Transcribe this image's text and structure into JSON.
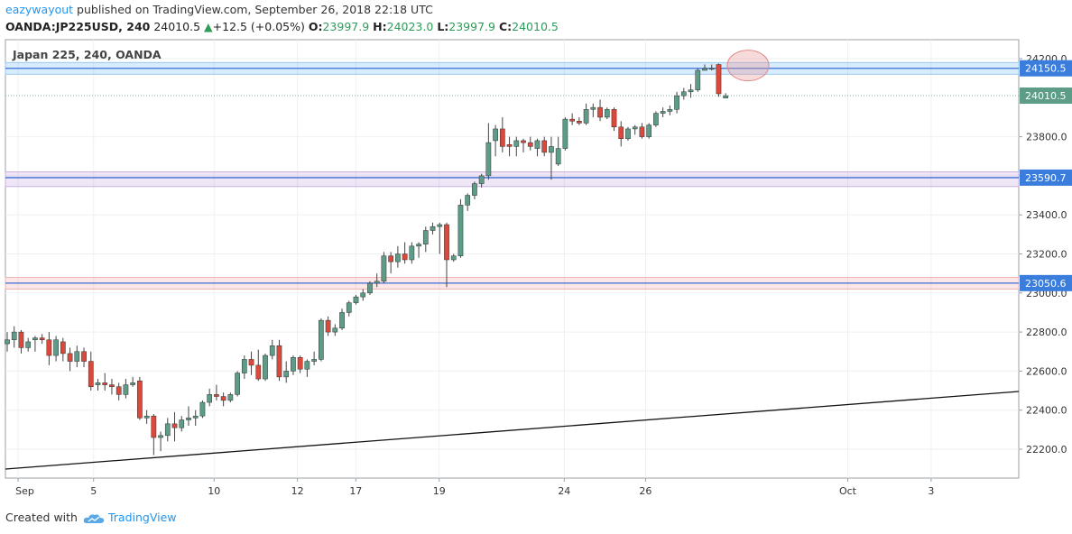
{
  "header": {
    "user": "eazywayout",
    "published_text": "published on TradingView.com, September 26, 2018 22:18 UTC",
    "symbol_line": "OANDA:JP225USD, 240",
    "last": "24010.5",
    "change": "+12.5 (+0.05%)",
    "o_label": "O:",
    "o_val": "23997.9",
    "h_label": "H:",
    "h_val": "24023.0",
    "l_label": "L:",
    "l_val": "23997.9",
    "c_label": "C:",
    "c_val": "24010.5"
  },
  "footer": {
    "created_with": "Created with",
    "brand": "TradingView"
  },
  "colors": {
    "up": "#5d9c87",
    "down": "#d9493c",
    "accent": "#2196f3",
    "band_blue": "#cfe3f7",
    "band_purple": "#e8ddf0",
    "band_red": "#f7dcdc"
  },
  "chart_data": {
    "type": "candlestick",
    "title": "Japan 225, 240, OANDA",
    "ylim": [
      22050,
      24250
    ],
    "y_ticks": [
      {
        "value": 24200,
        "label": "24200.0"
      },
      {
        "value": 23800,
        "label": "23800.0"
      },
      {
        "value": 23600,
        "label": "23600.0"
      },
      {
        "value": 23400,
        "label": "23400.0"
      },
      {
        "value": 23200,
        "label": "23200.0"
      },
      {
        "value": 23000,
        "label": "23000.0"
      },
      {
        "value": 22800,
        "label": "22800.0"
      },
      {
        "value": 22600,
        "label": "22600.0"
      },
      {
        "value": 22400,
        "label": "22400.0"
      },
      {
        "value": 22200,
        "label": "22200.0"
      }
    ],
    "x_ticks": [
      "Sep",
      "5",
      "10",
      "12",
      "17",
      "19",
      "24",
      "26",
      "Oct",
      "3"
    ],
    "price_lines": [
      {
        "value": 24150.5,
        "label": "24150.5",
        "band": [
          24120,
          24180
        ],
        "band_color": "blue"
      },
      {
        "value": 24010.5,
        "label": "24010.5",
        "current": true
      },
      {
        "value": 23590.7,
        "label": "23590.7",
        "band": [
          23545,
          23620
        ],
        "band_color": "purple"
      },
      {
        "value": 23050.6,
        "label": "23050.6",
        "band": [
          23020,
          23080
        ],
        "band_color": "red"
      }
    ],
    "trendline": [
      {
        "date": "Sep 1",
        "value": 22100
      },
      {
        "date": "Oct 5",
        "value": 22500
      }
    ],
    "highlight": {
      "date": "Sep 26",
      "value": 24165
    },
    "candles": [
      [
        22740,
        22800,
        22700,
        22760
      ],
      [
        22760,
        22830,
        22720,
        22800
      ],
      [
        22800,
        22810,
        22690,
        22720
      ],
      [
        22720,
        22770,
        22700,
        22750
      ],
      [
        22760,
        22780,
        22700,
        22770
      ],
      [
        22770,
        22790,
        22740,
        22760
      ],
      [
        22760,
        22800,
        22630,
        22680
      ],
      [
        22680,
        22780,
        22650,
        22760
      ],
      [
        22750,
        22770,
        22650,
        22690
      ],
      [
        22690,
        22720,
        22600,
        22650
      ],
      [
        22650,
        22730,
        22620,
        22700
      ],
      [
        22700,
        22720,
        22620,
        22650
      ],
      [
        22650,
        22700,
        22500,
        22520
      ],
      [
        22530,
        22560,
        22500,
        22540
      ],
      [
        22540,
        22590,
        22500,
        22530
      ],
      [
        22530,
        22560,
        22480,
        22520
      ],
      [
        22520,
        22540,
        22450,
        22480
      ],
      [
        22480,
        22560,
        22460,
        22530
      ],
      [
        22530,
        22570,
        22520,
        22540
      ],
      [
        22550,
        22570,
        22350,
        22360
      ],
      [
        22360,
        22400,
        22330,
        22370
      ],
      [
        22370,
        22380,
        22170,
        22260
      ],
      [
        22260,
        22290,
        22190,
        22270
      ],
      [
        22270,
        22360,
        22240,
        22330
      ],
      [
        22330,
        22390,
        22240,
        22310
      ],
      [
        22310,
        22370,
        22290,
        22350
      ],
      [
        22350,
        22420,
        22320,
        22360
      ],
      [
        22360,
        22400,
        22320,
        22370
      ],
      [
        22370,
        22450,
        22360,
        22440
      ],
      [
        22440,
        22510,
        22420,
        22480
      ],
      [
        22480,
        22530,
        22450,
        22470
      ],
      [
        22470,
        22490,
        22420,
        22450
      ],
      [
        22450,
        22490,
        22440,
        22480
      ],
      [
        22480,
        22600,
        22470,
        22590
      ],
      [
        22590,
        22680,
        22560,
        22660
      ],
      [
        22660,
        22700,
        22580,
        22630
      ],
      [
        22630,
        22710,
        22550,
        22560
      ],
      [
        22560,
        22690,
        22550,
        22680
      ],
      [
        22680,
        22760,
        22660,
        22730
      ],
      [
        22730,
        22760,
        22550,
        22570
      ],
      [
        22570,
        22650,
        22540,
        22600
      ],
      [
        22600,
        22680,
        22580,
        22670
      ],
      [
        22670,
        22680,
        22590,
        22610
      ],
      [
        22610,
        22660,
        22570,
        22650
      ],
      [
        22650,
        22700,
        22630,
        22660
      ],
      [
        22660,
        22870,
        22650,
        22860
      ],
      [
        22860,
        22880,
        22780,
        22800
      ],
      [
        22800,
        22840,
        22780,
        22820
      ],
      [
        22820,
        22920,
        22810,
        22900
      ],
      [
        22900,
        22960,
        22880,
        22950
      ],
      [
        22950,
        22990,
        22940,
        22980
      ],
      [
        22980,
        23020,
        22960,
        23000
      ],
      [
        23000,
        23060,
        22990,
        23050
      ],
      [
        23050,
        23100,
        23030,
        23060
      ],
      [
        23060,
        23210,
        23050,
        23190
      ],
      [
        23190,
        23210,
        23100,
        23160
      ],
      [
        23160,
        23240,
        23130,
        23200
      ],
      [
        23200,
        23260,
        23150,
        23170
      ],
      [
        23170,
        23260,
        23150,
        23240
      ],
      [
        23240,
        23260,
        23180,
        23250
      ],
      [
        23250,
        23340,
        23210,
        23320
      ],
      [
        23320,
        23360,
        23300,
        23340
      ],
      [
        23340,
        23360,
        23200,
        23350
      ],
      [
        23350,
        23360,
        23030,
        23170
      ],
      [
        23170,
        23200,
        23160,
        23190
      ],
      [
        23190,
        23480,
        23180,
        23450
      ],
      [
        23450,
        23510,
        23420,
        23500
      ],
      [
        23500,
        23570,
        23480,
        23560
      ],
      [
        23560,
        23610,
        23540,
        23600
      ],
      [
        23600,
        23870,
        23580,
        23770
      ],
      [
        23780,
        23860,
        23700,
        23840
      ],
      [
        23840,
        23900,
        23720,
        23750
      ],
      [
        23760,
        23800,
        23700,
        23750
      ],
      [
        23750,
        23800,
        23700,
        23780
      ],
      [
        23780,
        23790,
        23720,
        23770
      ],
      [
        23770,
        23800,
        23730,
        23750
      ],
      [
        23740,
        23790,
        23700,
        23780
      ],
      [
        23780,
        23800,
        23700,
        23720
      ],
      [
        23720,
        23800,
        23580,
        23750
      ],
      [
        23660,
        23800,
        23650,
        23740
      ],
      [
        23740,
        23900,
        23730,
        23890
      ],
      [
        23890,
        23920,
        23860,
        23880
      ],
      [
        23880,
        23900,
        23860,
        23870
      ],
      [
        23870,
        23970,
        23860,
        23940
      ],
      [
        23940,
        23970,
        23900,
        23950
      ],
      [
        23950,
        23990,
        23880,
        23900
      ],
      [
        23900,
        23950,
        23890,
        23940
      ],
      [
        23940,
        23950,
        23830,
        23850
      ],
      [
        23850,
        23880,
        23750,
        23790
      ],
      [
        23790,
        23850,
        23780,
        23840
      ],
      [
        23840,
        23860,
        23810,
        23850
      ],
      [
        23850,
        23870,
        23790,
        23800
      ],
      [
        23800,
        23870,
        23790,
        23860
      ],
      [
        23860,
        23930,
        23850,
        23920
      ],
      [
        23920,
        23950,
        23900,
        23930
      ],
      [
        23930,
        23960,
        23910,
        23940
      ],
      [
        23940,
        24030,
        23920,
        24010
      ],
      [
        24010,
        24050,
        23990,
        24030
      ],
      [
        24030,
        24070,
        24000,
        24040
      ],
      [
        24040,
        24150,
        24030,
        24140
      ],
      [
        24140,
        24170,
        24140,
        24150
      ],
      [
        24150,
        24170,
        24140,
        24150
      ],
      [
        24170,
        24175,
        24005,
        24020
      ],
      [
        23998,
        24023,
        23998,
        24010
      ]
    ]
  }
}
